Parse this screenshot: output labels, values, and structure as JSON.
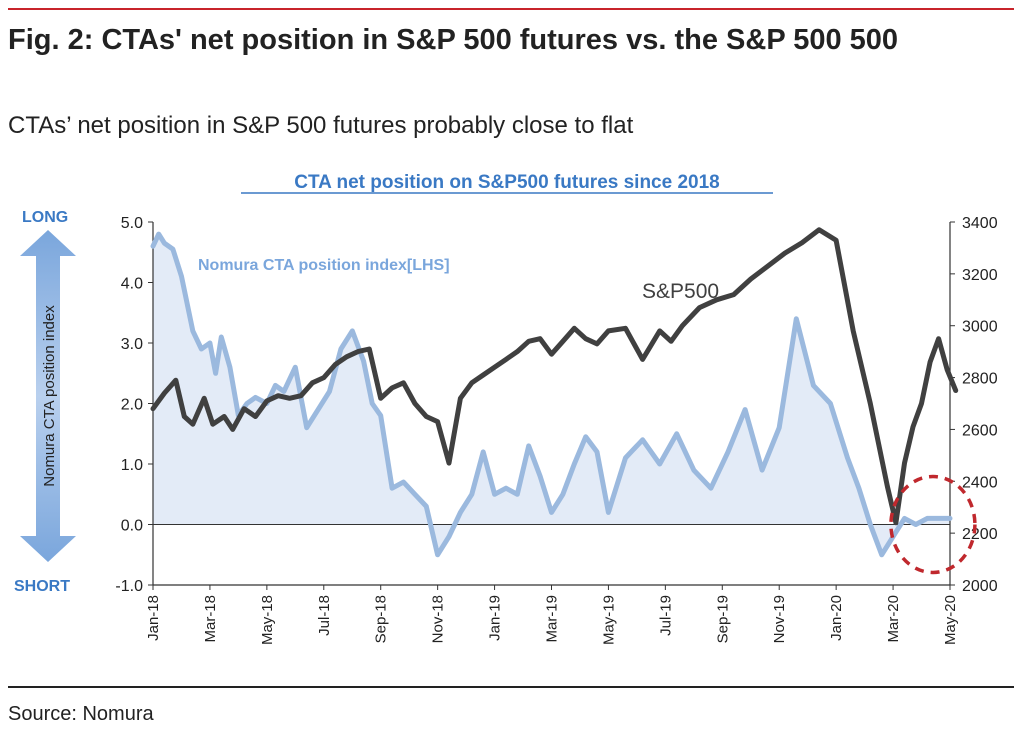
{
  "header": {
    "title": "Fig. 2: CTAs' net position in S&P 500 futures vs. the S&P 500 500",
    "subtitle": "CTAs’ net position in S&P 500 futures probably close to flat"
  },
  "footer": {
    "source": "Source: Nomura"
  },
  "colors": {
    "cta_line": "#9bb9de",
    "cta_fill": "#e3ebf7",
    "spx_line": "#404040",
    "accent_title": "#3a79c4",
    "highlight_circle": "#c0282d"
  },
  "chart_data": {
    "type": "line",
    "title": "CTA net position on S&P500 futures since 2018",
    "ylabel": "Nomura CTA position index",
    "long_label": "LONG",
    "short_label": "SHORT",
    "x_ticks": [
      "Jan-18",
      "Mar-18",
      "May-18",
      "Jul-18",
      "Sep-18",
      "Nov-18",
      "Jan-19",
      "Mar-19",
      "May-19",
      "Jul-19",
      "Sep-19",
      "Nov-19",
      "Jan-20",
      "Mar-20",
      "May-20"
    ],
    "y_left": {
      "min": -1.0,
      "max": 5.0,
      "ticks": [
        "-1.0",
        "0.0",
        "1.0",
        "2.0",
        "3.0",
        "4.0",
        "5.0"
      ]
    },
    "y_right": {
      "min": 2000,
      "max": 3400,
      "ticks": [
        "2000",
        "2200",
        "2400",
        "2600",
        "2800",
        "3000",
        "3200",
        "3400"
      ]
    },
    "series": [
      {
        "name": "Nomura CTA position index[LHS]",
        "axis": "left",
        "x": [
          0,
          0.1,
          0.2,
          0.35,
          0.5,
          0.7,
          0.85,
          1,
          1.1,
          1.2,
          1.35,
          1.5,
          1.65,
          1.8,
          2,
          2.15,
          2.3,
          2.5,
          2.7,
          2.9,
          3.1,
          3.3,
          3.5,
          3.7,
          3.85,
          4,
          4.2,
          4.4,
          4.6,
          4.8,
          5,
          5.2,
          5.4,
          5.6,
          5.8,
          6,
          6.2,
          6.4,
          6.6,
          6.8,
          7,
          7.2,
          7.4,
          7.6,
          7.8,
          8,
          8.3,
          8.6,
          8.9,
          9.2,
          9.5,
          9.8,
          10.1,
          10.4,
          10.7,
          11,
          11.3,
          11.6,
          11.9,
          12.2,
          12.4,
          12.6,
          12.8,
          13,
          13.2,
          13.4,
          13.6,
          13.8,
          14
        ],
        "values": [
          4.6,
          4.8,
          4.65,
          4.55,
          4.1,
          3.2,
          2.9,
          3.0,
          2.5,
          3.1,
          2.6,
          1.8,
          2.0,
          2.1,
          2.0,
          2.3,
          2.2,
          2.6,
          1.6,
          1.9,
          2.2,
          2.9,
          3.2,
          2.7,
          2.0,
          1.8,
          0.6,
          0.7,
          0.5,
          0.3,
          -0.5,
          -0.2,
          0.2,
          0.5,
          1.2,
          0.5,
          0.6,
          0.5,
          1.3,
          0.8,
          0.2,
          0.5,
          1.0,
          1.45,
          1.2,
          0.2,
          1.1,
          1.4,
          1.0,
          1.5,
          0.9,
          0.6,
          1.2,
          1.9,
          0.9,
          1.6,
          3.4,
          2.3,
          2.0,
          1.1,
          0.6,
          0.0,
          -0.5,
          -0.2,
          0.1,
          0.0,
          0.1,
          0.1,
          0.1
        ]
      },
      {
        "name": "S&P500",
        "axis": "right",
        "x": [
          0,
          0.2,
          0.4,
          0.55,
          0.7,
          0.9,
          1.05,
          1.25,
          1.4,
          1.6,
          1.8,
          2,
          2.2,
          2.4,
          2.6,
          2.8,
          3,
          3.2,
          3.4,
          3.6,
          3.8,
          4,
          4.2,
          4.4,
          4.6,
          4.8,
          5,
          5.2,
          5.4,
          5.6,
          5.8,
          6,
          6.2,
          6.4,
          6.6,
          6.8,
          7,
          7.2,
          7.4,
          7.6,
          7.8,
          8,
          8.3,
          8.6,
          8.9,
          9.1,
          9.3,
          9.6,
          9.9,
          10.2,
          10.5,
          10.8,
          11.1,
          11.4,
          11.7,
          12,
          12.3,
          12.6,
          12.9,
          13.05,
          13.2,
          13.35,
          13.5,
          13.65,
          13.8,
          13.95,
          14.1
        ],
        "values": [
          2680,
          2740,
          2790,
          2650,
          2620,
          2720,
          2620,
          2650,
          2600,
          2680,
          2650,
          2710,
          2730,
          2720,
          2730,
          2780,
          2800,
          2850,
          2880,
          2900,
          2910,
          2720,
          2760,
          2780,
          2700,
          2650,
          2630,
          2470,
          2720,
          2780,
          2810,
          2840,
          2870,
          2900,
          2940,
          2950,
          2890,
          2940,
          2990,
          2950,
          2930,
          2980,
          2990,
          2870,
          2980,
          2940,
          3000,
          3070,
          3100,
          3120,
          3180,
          3230,
          3280,
          3320,
          3370,
          3330,
          2980,
          2700,
          2380,
          2240,
          2470,
          2610,
          2700,
          2860,
          2950,
          2830,
          2750
        ]
      }
    ],
    "annotations": [
      {
        "text": "Nomura CTA position index[LHS]"
      },
      {
        "text": "S&P500"
      }
    ],
    "highlight": {
      "shape": "ellipse",
      "x": 13.7,
      "y": 0.0
    }
  }
}
